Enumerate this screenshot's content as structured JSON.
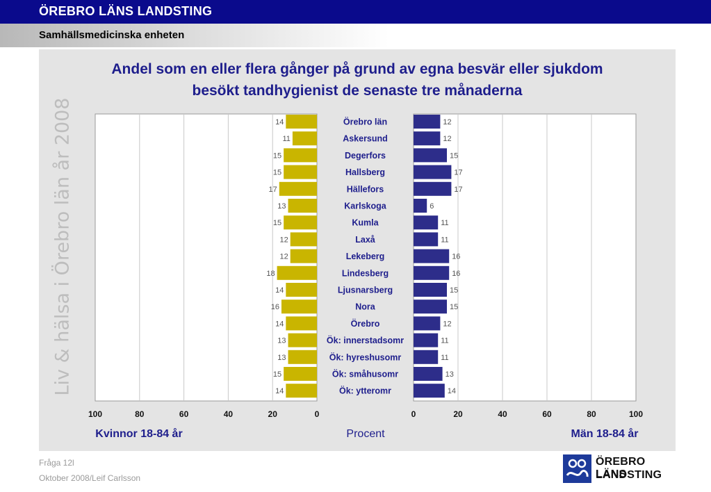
{
  "header": {
    "organization": "ÖREBRO LÄNS LANDSTING",
    "unit": "Samhällsmedicinska enheten"
  },
  "side_text": "Liv & hälsa i Örebro län år 2008",
  "footer": {
    "question": "Fråga 12l",
    "credit": "Oktober 2008/Leif Carlsson"
  },
  "logo": {
    "line1": "ÖREBRO LÄNS",
    "line2": "LANDSTING"
  },
  "colors": {
    "women": "#c9b500",
    "men": "#2d2d8a",
    "title": "#1e1e8c",
    "label": "#1e1e8c"
  },
  "chart_data": {
    "type": "bar",
    "orientation": "horizontal-butterfly",
    "title_lines": [
      "Andel som en eller flera gånger på grund av egna besvär eller sjukdom",
      "besökt tandhygienist de senaste tre månaderna"
    ],
    "center_axis_label": "Procent",
    "left_label": "Kvinnor 18-84 år",
    "right_label": "Män 18-84 år",
    "xlim": [
      0,
      100
    ],
    "left_ticks": [
      "100",
      "80",
      "60",
      "40",
      "20",
      "0"
    ],
    "right_ticks": [
      "0",
      "20",
      "40",
      "60",
      "80",
      "100"
    ],
    "grid": true,
    "categories": [
      "Örebro län",
      "Askersund",
      "Degerfors",
      "Hallsberg",
      "Hällefors",
      "Karlskoga",
      "Kumla",
      "Laxå",
      "Lekeberg",
      "Lindesberg",
      "Ljusnarsberg",
      "Nora",
      "Örebro",
      "Ök: innerstadsomr",
      "Ök: hyreshusomr",
      "Ök: småhusomr",
      "Ök: ytteromr"
    ],
    "series": [
      {
        "name": "Kvinnor 18-84 år",
        "values": [
          14,
          11,
          15,
          15,
          17,
          13,
          15,
          12,
          12,
          18,
          14,
          16,
          14,
          13,
          13,
          15,
          14
        ]
      },
      {
        "name": "Män 18-84 år",
        "values": [
          12,
          12,
          15,
          17,
          17,
          6,
          11,
          11,
          16,
          16,
          15,
          15,
          12,
          11,
          11,
          13,
          14
        ]
      }
    ]
  }
}
